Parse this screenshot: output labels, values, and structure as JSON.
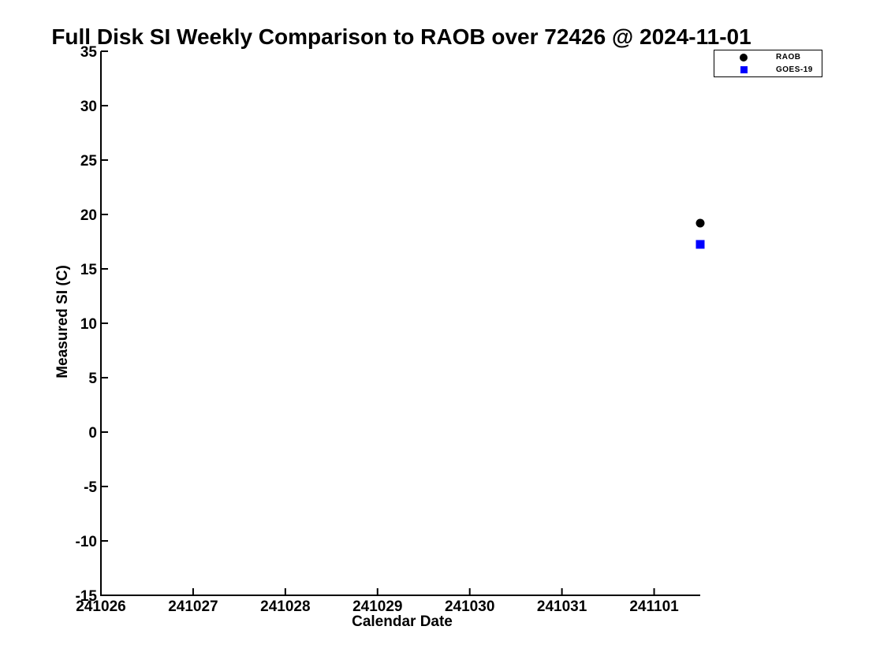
{
  "chart_data": {
    "type": "scatter",
    "title": "Full Disk SI Weekly Comparison to RAOB over 72426 @ 2024-11-01",
    "xlabel": "Calendar Date",
    "ylabel": "Measured SI (C)",
    "x_tick_labels": [
      "241026",
      "241027",
      "241028",
      "241029",
      "241030",
      "241031",
      "241101"
    ],
    "x_tick_positions_days": [
      0,
      1,
      2,
      3,
      4,
      5,
      6
    ],
    "xlim_days": [
      0,
      6.5
    ],
    "y_ticks": [
      -15,
      -10,
      -5,
      0,
      5,
      10,
      15,
      20,
      25,
      30,
      35
    ],
    "ylim": [
      -15,
      35
    ],
    "grid": false,
    "legend_position": "top-right",
    "axis_color": "#000000",
    "background_color": "#ffffff",
    "series": [
      {
        "name": "RAOB",
        "marker": "circle",
        "color": "#000000",
        "points": [
          {
            "x_days": 6.5,
            "y": 19.2
          }
        ]
      },
      {
        "name": "GOES-19",
        "marker": "square",
        "color": "#0000ff",
        "points": [
          {
            "x_days": 6.5,
            "y": 17.25
          }
        ]
      }
    ]
  }
}
